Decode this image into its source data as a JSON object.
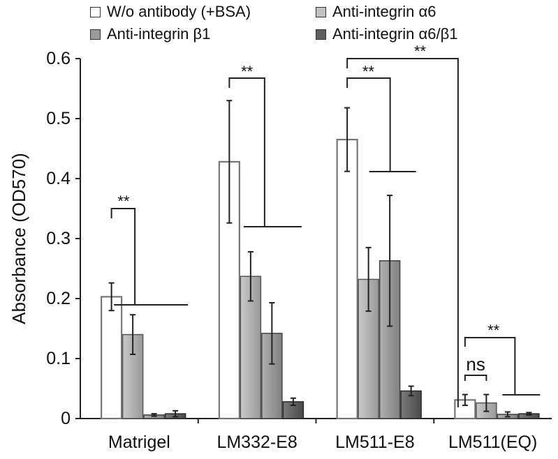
{
  "chart_data": {
    "type": "bar",
    "title": "",
    "xlabel": "",
    "ylabel": "Absorbance (OD570)",
    "ylim": [
      0,
      0.6
    ],
    "yticks": [
      "0",
      "0.1",
      "0.2",
      "0.3",
      "0.4",
      "0.5",
      "0.6"
    ],
    "categories": [
      "Matrigel",
      "LM332-E8",
      "LM511-E8",
      "LM511(EQ)"
    ],
    "series": [
      {
        "name": "W/o antibody (+BSA)",
        "color": "#ffffff",
        "stroke": "#777777",
        "values": [
          0.203,
          0.428,
          0.465,
          0.031
        ],
        "errors": [
          0.023,
          0.102,
          0.053,
          0.009
        ]
      },
      {
        "name": "Anti-integrin β1",
        "color": "#adadad",
        "stroke": "#555555",
        "values": [
          0.14,
          0.237,
          0.232,
          0.026
        ],
        "errors": [
          0.033,
          0.041,
          0.053,
          0.014
        ]
      },
      {
        "name": "Anti-integrin α6",
        "color": "#9a9a9a",
        "stroke": "#444444",
        "values": [
          0.006,
          0.142,
          0.263,
          0.007
        ],
        "errors": [
          0.002,
          0.051,
          0.109,
          0.004
        ]
      },
      {
        "name": "Anti-integrin α6/β1",
        "color": "#5f5f5f",
        "stroke": "#2a2a2a",
        "values": [
          0.008,
          0.028,
          0.046,
          0.008
        ],
        "errors": [
          0.005,
          0.006,
          0.008,
          0.002
        ]
      }
    ],
    "legend_order": [
      0,
      2,
      1,
      3
    ],
    "annotations": [
      {
        "label": "**",
        "category": "Matrigel",
        "from_value": 0.203
      },
      {
        "label": "**",
        "category": "LM332-E8",
        "from_value": 0.428
      },
      {
        "label": "**",
        "category": "LM511-E8",
        "from_value": 0.465
      },
      {
        "label": "**",
        "category": "LM511-E8",
        "from_value": 0.465
      },
      {
        "label": "ns",
        "category": "LM511(EQ)",
        "from_value": 0.031
      },
      {
        "label": "**",
        "category": "LM511(EQ)",
        "from_value": 0.031
      }
    ]
  }
}
